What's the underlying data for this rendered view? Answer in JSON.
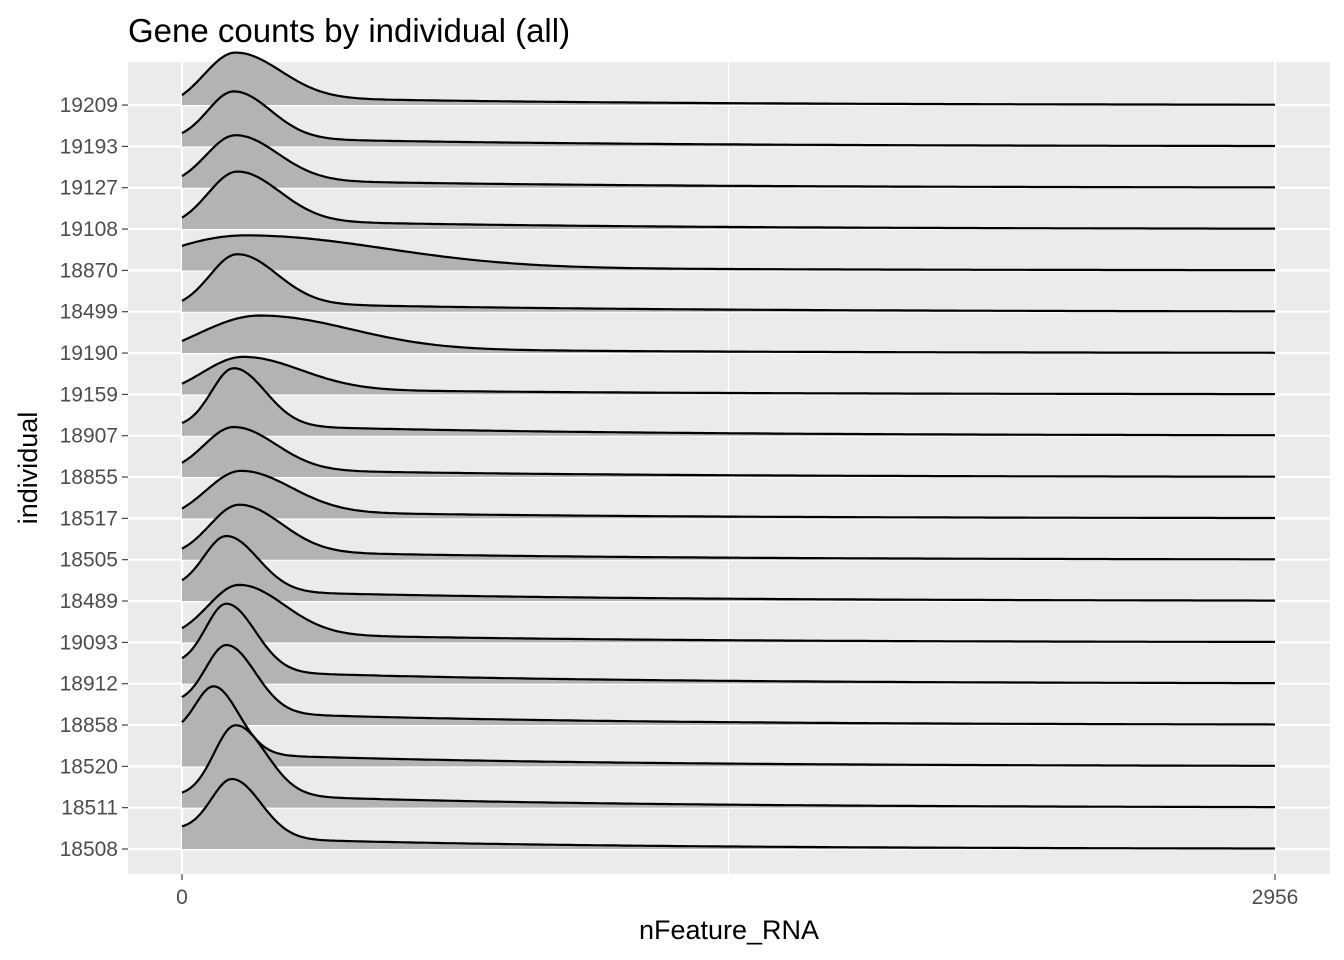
{
  "chart_data": {
    "type": "ridgeline",
    "title": "Gene counts by individual (all)",
    "xlabel": "nFeature_RNA",
    "ylabel": "individual",
    "xlim": [
      0,
      2956
    ],
    "x_ticks": [
      0,
      2956
    ],
    "x_tick_labels": [
      "0",
      "2956"
    ],
    "grid": true,
    "fill_color": "#b3b3b3",
    "panel_background": "#ebebeb",
    "categories": [
      "18508",
      "18511",
      "18520",
      "18858",
      "18912",
      "19093",
      "18489",
      "18505",
      "18517",
      "18855",
      "18907",
      "19159",
      "19190",
      "18499",
      "18870",
      "19108",
      "19127",
      "19193",
      "19209"
    ],
    "series": [
      {
        "category": "18508",
        "peak_x": 135,
        "peak_height": 1.4,
        "start_height": 0.45,
        "width": 55
      },
      {
        "category": "18511",
        "peak_x": 145,
        "peak_height": 1.65,
        "start_height": 0.3,
        "width": 58
      },
      {
        "category": "18520",
        "peak_x": 85,
        "peak_height": 1.6,
        "start_height": 0.85,
        "width": 48
      },
      {
        "category": "18858",
        "peak_x": 120,
        "peak_height": 1.6,
        "start_height": 0.55,
        "width": 55
      },
      {
        "category": "18912",
        "peak_x": 120,
        "peak_height": 1.6,
        "start_height": 0.5,
        "width": 55
      },
      {
        "category": "19093",
        "peak_x": 155,
        "peak_height": 1.15,
        "start_height": 0.25,
        "width": 85
      },
      {
        "category": "18489",
        "peak_x": 120,
        "peak_height": 1.3,
        "start_height": 0.4,
        "width": 60
      },
      {
        "category": "18505",
        "peak_x": 155,
        "peak_height": 1.1,
        "start_height": 0.2,
        "width": 80
      },
      {
        "category": "18517",
        "peak_x": 160,
        "peak_height": 0.95,
        "start_height": 0.15,
        "width": 95
      },
      {
        "category": "18855",
        "peak_x": 140,
        "peak_height": 1.0,
        "start_height": 0.25,
        "width": 80
      },
      {
        "category": "18907",
        "peak_x": 140,
        "peak_height": 1.35,
        "start_height": 0.25,
        "width": 60
      },
      {
        "category": "19159",
        "peak_x": 165,
        "peak_height": 0.75,
        "start_height": 0.15,
        "width": 110
      },
      {
        "category": "19190",
        "peak_x": 210,
        "peak_height": 0.75,
        "start_height": 0.1,
        "width": 170
      },
      {
        "category": "18499",
        "peak_x": 150,
        "peak_height": 1.15,
        "start_height": 0.2,
        "width": 75
      },
      {
        "category": "18870",
        "peak_x": 170,
        "peak_height": 0.7,
        "start_height": 0.1,
        "width": 260
      },
      {
        "category": "19108",
        "peak_x": 150,
        "peak_height": 1.15,
        "start_height": 0.2,
        "width": 80
      },
      {
        "category": "19127",
        "peak_x": 145,
        "peak_height": 1.05,
        "start_height": 0.2,
        "width": 80
      },
      {
        "category": "19193",
        "peak_x": 140,
        "peak_height": 1.1,
        "start_height": 0.25,
        "width": 70
      },
      {
        "category": "19209",
        "peak_x": 145,
        "peak_height": 1.05,
        "start_height": 0.15,
        "width": 85
      }
    ]
  }
}
